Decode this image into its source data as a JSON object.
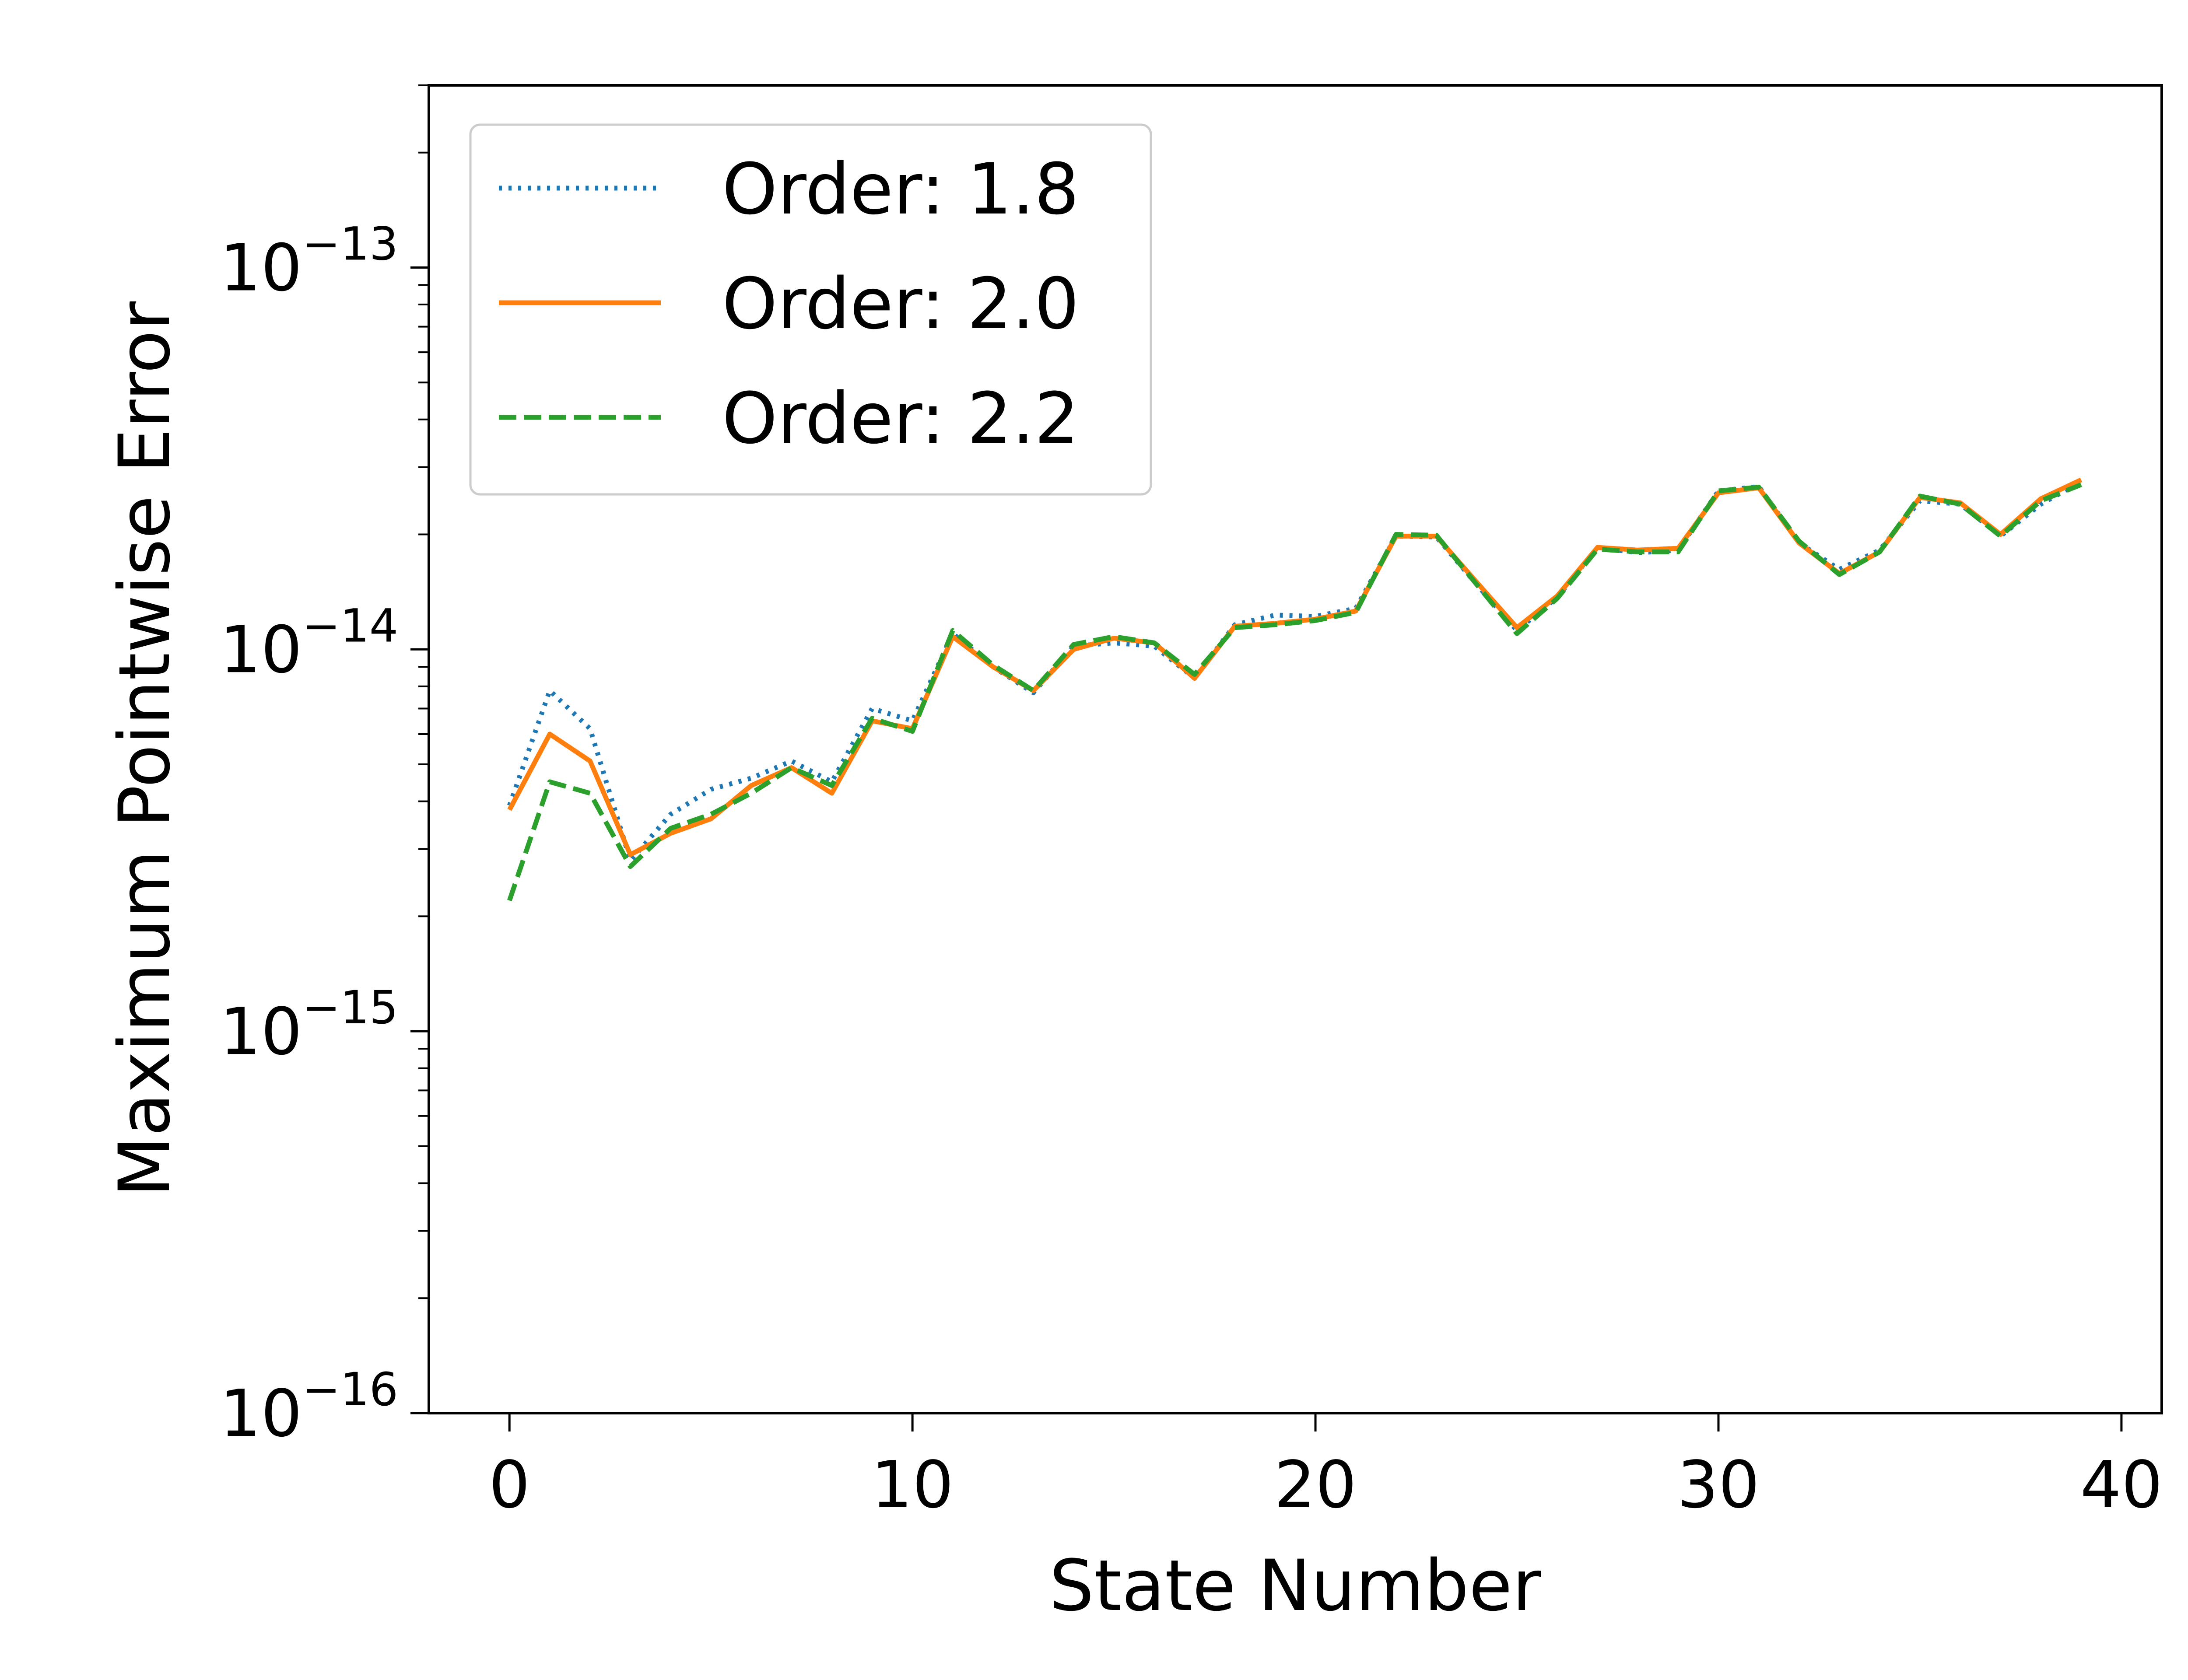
{
  "chart_data": {
    "type": "line",
    "title": "",
    "xlabel": "State Number",
    "ylabel": "Maximum Pointwise Error",
    "xlim": [
      -2,
      41
    ],
    "ylim": [
      1e-16,
      3e-13
    ],
    "yscale": "log",
    "grid": false,
    "legend": "top-left",
    "x_ticks": [
      {
        "value": 0,
        "label": "0"
      },
      {
        "value": 10,
        "label": "10"
      },
      {
        "value": 20,
        "label": "20"
      },
      {
        "value": 30,
        "label": "30"
      },
      {
        "value": 40,
        "label": "40"
      }
    ],
    "y_ticks": [
      {
        "value": 1e-16,
        "base": "10",
        "exp": "−16"
      },
      {
        "value": 1e-15,
        "base": "10",
        "exp": "−15"
      },
      {
        "value": 1e-14,
        "base": "10",
        "exp": "−14"
      },
      {
        "value": 1e-13,
        "base": "10",
        "exp": "−13"
      }
    ],
    "x": [
      0,
      1,
      2,
      3,
      4,
      5,
      6,
      7,
      8,
      9,
      10,
      11,
      12,
      13,
      14,
      15,
      16,
      17,
      18,
      19,
      20,
      21,
      22,
      23,
      24,
      25,
      26,
      27,
      28,
      29,
      30,
      31,
      32,
      33,
      34,
      35,
      36,
      37,
      38,
      39
    ],
    "series": [
      {
        "name": "Order: 1.8",
        "color": "#1f77b4",
        "dash": "dotted",
        "values": [
          3.9e-15,
          7.8e-15,
          6.2e-15,
          2.8e-15,
          3.7e-15,
          4.3e-15,
          4.6e-15,
          5.1e-15,
          4.5e-15,
          7e-15,
          6.5e-15,
          1.1e-14,
          9e-15,
          7.7e-15,
          1.02e-14,
          1.04e-14,
          1.02e-14,
          8.4e-15,
          1.16e-14,
          1.23e-14,
          1.22e-14,
          1.28e-14,
          1.98e-14,
          1.97e-14,
          1.48e-14,
          1.12e-14,
          1.37e-14,
          1.85e-14,
          1.79e-14,
          1.82e-14,
          2.6e-14,
          2.67e-14,
          1.9e-14,
          1.62e-14,
          1.82e-14,
          2.45e-14,
          2.4e-14,
          1.98e-14,
          2.4e-14,
          2.75e-14
        ]
      },
      {
        "name": "Order: 2.0",
        "color": "#ff7f0e",
        "dash": "solid",
        "values": [
          3.8e-15,
          6e-15,
          5.1e-15,
          2.9e-15,
          3.3e-15,
          3.6e-15,
          4.4e-15,
          4.9e-15,
          4.2e-15,
          6.5e-15,
          6.2e-15,
          1.08e-14,
          9e-15,
          7.8e-15,
          1e-14,
          1.07e-14,
          1.04e-14,
          8.4e-15,
          1.15e-14,
          1.17e-14,
          1.2e-14,
          1.26e-14,
          1.98e-14,
          1.98e-14,
          1.5e-14,
          1.14e-14,
          1.38e-14,
          1.85e-14,
          1.82e-14,
          1.84e-14,
          2.57e-14,
          2.65e-14,
          1.9e-14,
          1.58e-14,
          1.8e-14,
          2.5e-14,
          2.42e-14,
          2e-14,
          2.48e-14,
          2.78e-14
        ]
      },
      {
        "name": "Order: 2.2",
        "color": "#2ca02c",
        "dash": "dashed",
        "values": [
          2.2e-15,
          4.5e-15,
          4.2e-15,
          2.7e-15,
          3.4e-15,
          3.7e-15,
          4.2e-15,
          4.9e-15,
          4.4e-15,
          6.6e-15,
          6.1e-15,
          1.12e-14,
          9.1e-15,
          7.8e-15,
          1.03e-14,
          1.08e-14,
          1.04e-14,
          8.6e-15,
          1.14e-14,
          1.16e-14,
          1.19e-14,
          1.25e-14,
          2e-14,
          1.99e-14,
          1.48e-14,
          1.1e-14,
          1.36e-14,
          1.83e-14,
          1.8e-14,
          1.8e-14,
          2.6e-14,
          2.66e-14,
          1.92e-14,
          1.57e-14,
          1.8e-14,
          2.52e-14,
          2.4e-14,
          1.98e-14,
          2.45e-14,
          2.7e-14
        ]
      }
    ]
  }
}
